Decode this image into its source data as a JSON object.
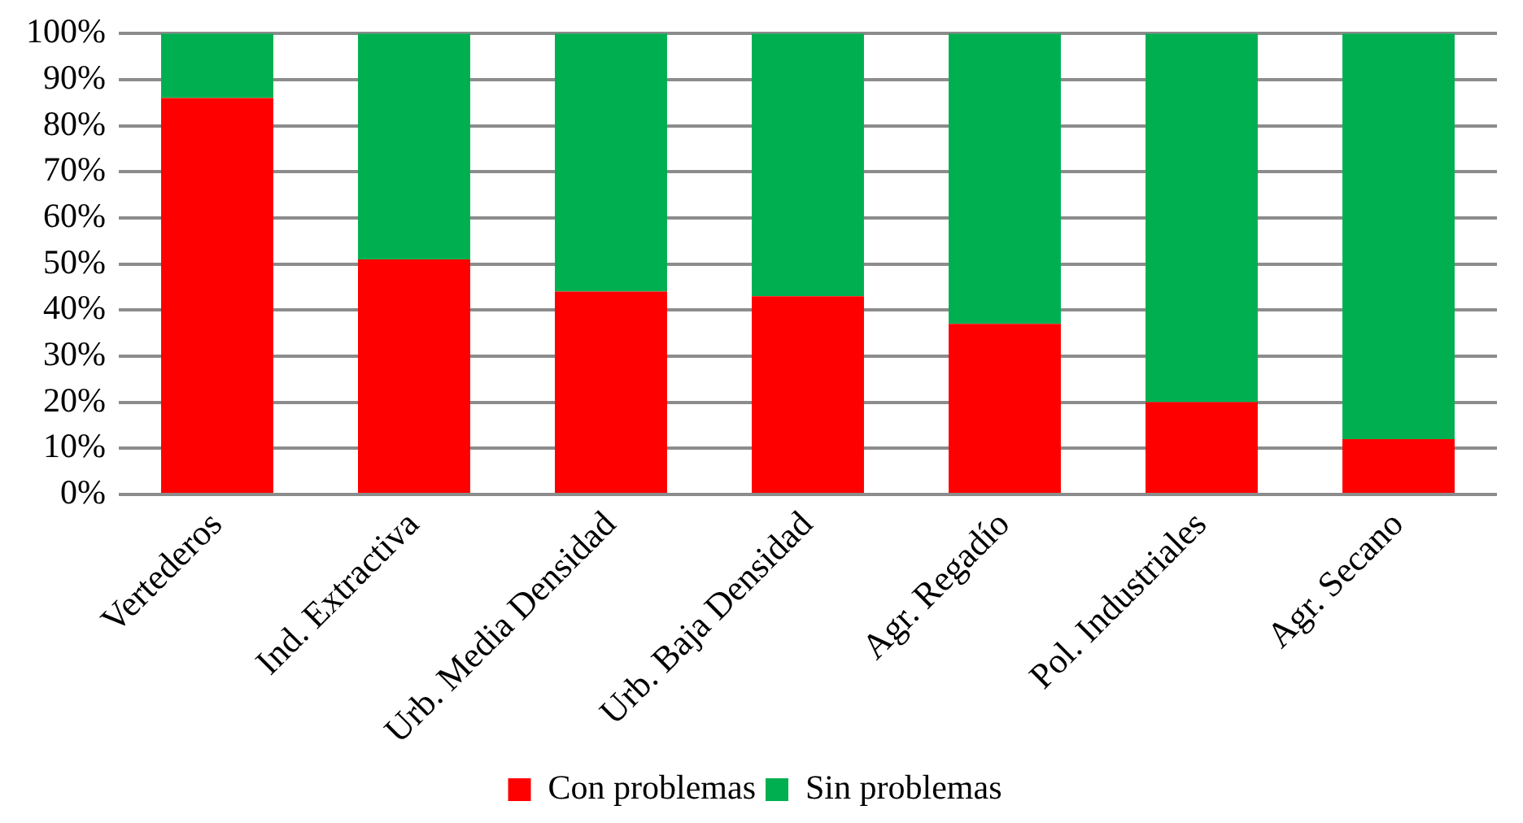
{
  "chart_data": {
    "type": "bar",
    "stacked": true,
    "categories": [
      "Vertederos",
      "Ind. Extractiva",
      "Urb. Media Densidad",
      "Urb. Baja Densidad",
      "Agr. Regadío",
      "Pol. Industriales",
      "Agr. Secano"
    ],
    "series": [
      {
        "name": "Con problemas",
        "color": "#ff0000",
        "values": [
          86,
          51,
          44,
          43,
          37,
          20,
          12
        ]
      },
      {
        "name": "Sin problemas",
        "color": "#00b050",
        "values": [
          14,
          49,
          56,
          57,
          63,
          80,
          88
        ]
      }
    ],
    "ylim": [
      0,
      100
    ],
    "yticks": [
      {
        "value": 0,
        "label": "0%"
      },
      {
        "value": 10,
        "label": "10%"
      },
      {
        "value": 20,
        "label": "20%"
      },
      {
        "value": 30,
        "label": "30%"
      },
      {
        "value": 40,
        "label": "40%"
      },
      {
        "value": 50,
        "label": "50%"
      },
      {
        "value": 60,
        "label": "60%"
      },
      {
        "value": 70,
        "label": "70%"
      },
      {
        "value": 80,
        "label": "80%"
      },
      {
        "value": 90,
        "label": "90%"
      },
      {
        "value": 100,
        "label": "100%"
      }
    ],
    "grid": "y",
    "legend": "bottom"
  }
}
